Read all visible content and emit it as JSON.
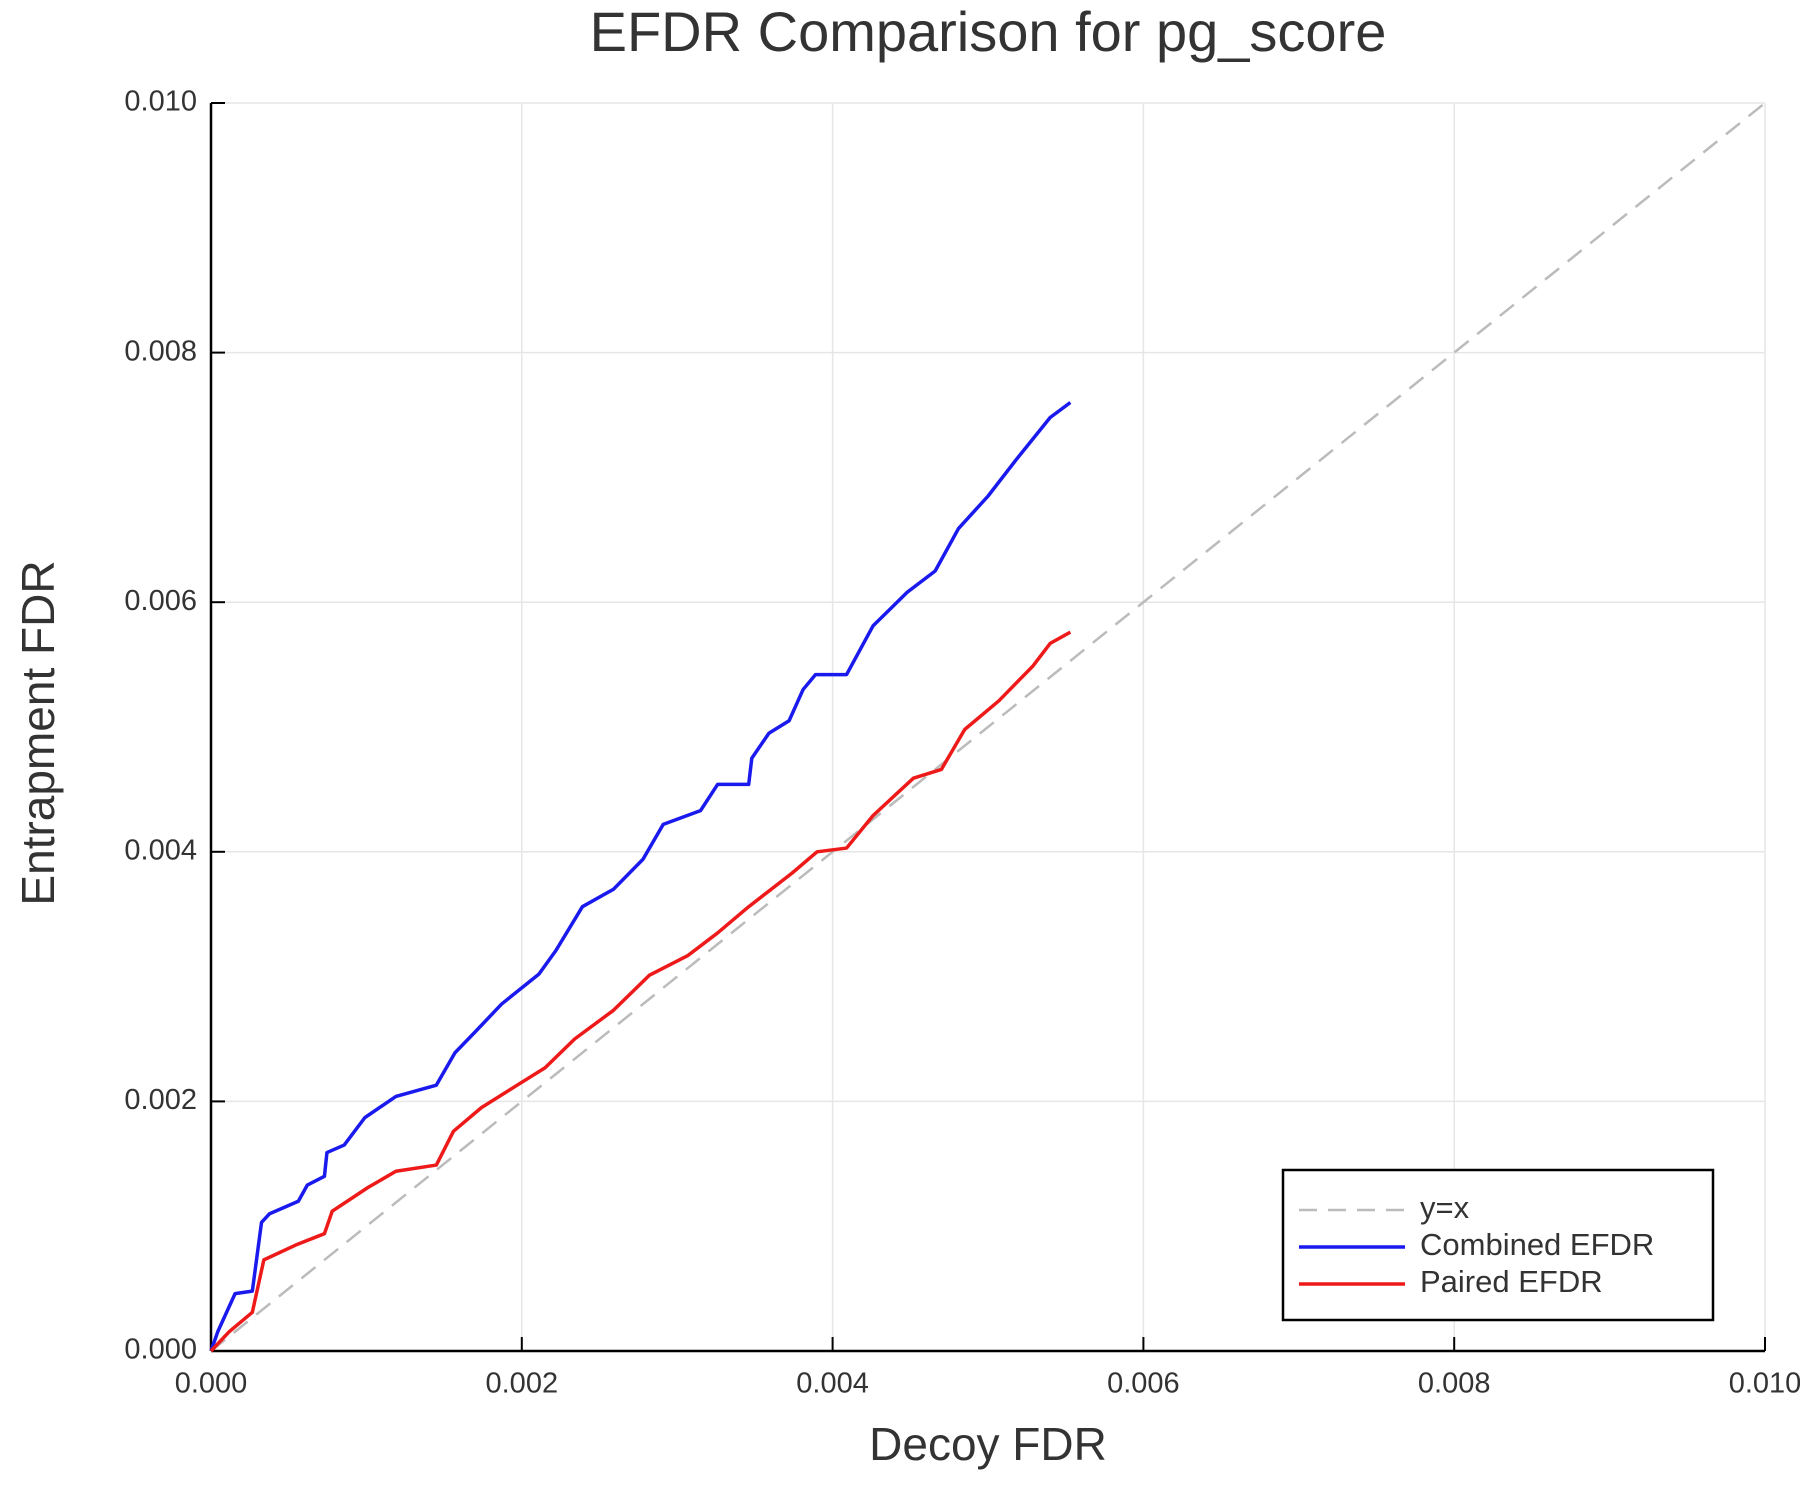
{
  "chart_data": {
    "type": "line",
    "title": "EFDR Comparison for pg_score",
    "x_label": "Decoy FDR",
    "y_label": "Entrapment FDR",
    "xlim": [
      0,
      0.01
    ],
    "ylim": [
      0,
      0.01
    ],
    "xticks": [
      {
        "value": 0,
        "label": "0.000"
      },
      {
        "value": 0.002,
        "label": "0.002"
      },
      {
        "value": 0.004,
        "label": "0.004"
      },
      {
        "value": 0.006,
        "label": "0.006"
      },
      {
        "value": 0.008,
        "label": "0.008"
      },
      {
        "value": 0.01,
        "label": "0.010"
      }
    ],
    "yticks": [
      {
        "value": 0,
        "label": "0.000"
      },
      {
        "value": 0.002,
        "label": "0.002"
      },
      {
        "value": 0.004,
        "label": "0.004"
      },
      {
        "value": 0.006,
        "label": "0.006"
      },
      {
        "value": 0.008,
        "label": "0.008"
      },
      {
        "value": 0.01,
        "label": "0.010"
      }
    ],
    "grid": true,
    "legend": "bottom-right",
    "series": [
      {
        "name": "y=x",
        "color": "#bbbbbb",
        "dash": true,
        "x": [
          0,
          0.01
        ],
        "values": [
          0,
          0.01
        ]
      },
      {
        "name": "Combined EFDR",
        "color": "#1a1aee",
        "dash": false,
        "x": [
          0,
          4.4e-05,
          0.000155,
          0.000266,
          0.000325,
          0.000377,
          0.000562,
          0.00062,
          0.00073,
          0.000746,
          0.000857,
          0.00099,
          0.00119,
          0.00145,
          0.00157,
          0.00171,
          0.00187,
          0.00211,
          0.00222,
          0.00239,
          0.00259,
          0.00278,
          0.00291,
          0.00315,
          0.00326,
          0.00346,
          0.00348,
          0.00359,
          0.00372,
          0.00381,
          0.00389,
          0.00409,
          0.00426,
          0.00448,
          0.00466,
          0.00481,
          0.005,
          0.00518,
          0.0054,
          0.00553
        ],
        "values": [
          0,
          0.000156,
          0.00046,
          0.00048,
          0.00103,
          0.0011,
          0.0012,
          0.00133,
          0.0014,
          0.00159,
          0.00165,
          0.00187,
          0.00204,
          0.00213,
          0.00239,
          0.00257,
          0.00278,
          0.00302,
          0.00321,
          0.00356,
          0.0037,
          0.00394,
          0.00422,
          0.00433,
          0.00454,
          0.00454,
          0.00475,
          0.00495,
          0.00505,
          0.0053,
          0.00542,
          0.00542,
          0.00581,
          0.00608,
          0.00625,
          0.00659,
          0.00685,
          0.00714,
          0.00748,
          0.0076
        ]
      },
      {
        "name": "Paired EFDR",
        "color": "#ee1a1a",
        "dash": false,
        "x": [
          0,
          0.000118,
          0.000266,
          0.00034,
          0.000547,
          0.00073,
          0.00078,
          0.00101,
          0.00119,
          0.00145,
          0.00156,
          0.00174,
          0.00197,
          0.00215,
          0.00234,
          0.00259,
          0.00282,
          0.00307,
          0.00326,
          0.00346,
          0.00374,
          0.0039,
          0.00409,
          0.00426,
          0.00452,
          0.0047,
          0.00485,
          0.00507,
          0.00529,
          0.0054,
          0.00553
        ],
        "values": [
          0,
          0.000156,
          0.00031,
          0.00073,
          0.00085,
          0.00094,
          0.00112,
          0.00131,
          0.00144,
          0.00149,
          0.00176,
          0.00195,
          0.00213,
          0.00227,
          0.0025,
          0.00273,
          0.00301,
          0.00317,
          0.00335,
          0.00356,
          0.00383,
          0.004,
          0.00403,
          0.00429,
          0.00459,
          0.00466,
          0.00498,
          0.00521,
          0.00549,
          0.00567,
          0.00576
        ]
      }
    ]
  }
}
